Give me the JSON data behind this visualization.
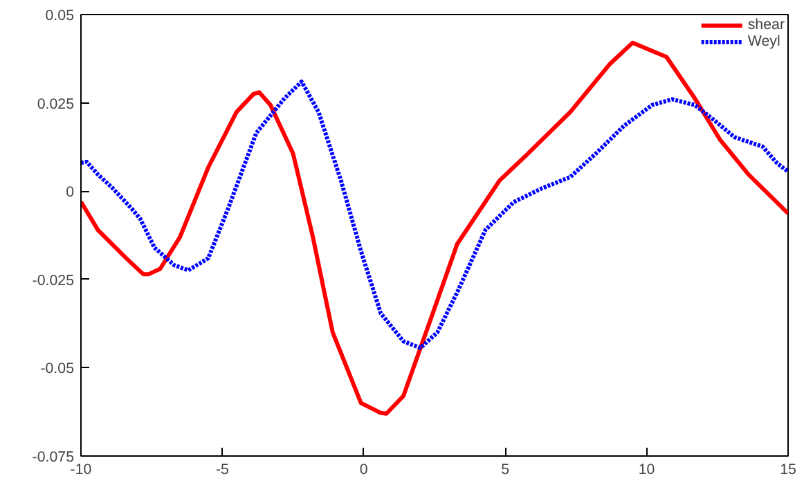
{
  "chart_data": {
    "type": "line",
    "xlim": [
      -10,
      15
    ],
    "ylim": [
      -0.075,
      0.05
    ],
    "xticks": [
      -10,
      -5,
      0,
      5,
      10,
      15
    ],
    "yticks": [
      -0.075,
      -0.05,
      -0.025,
      0,
      0.025,
      0.05
    ],
    "grid": false,
    "legend": "top right",
    "marker": "none",
    "series": [
      {
        "name": "shear",
        "color": "#ff0000",
        "line_style": "solid",
        "x": [
          -10,
          -9.4,
          -8.4,
          -7.8,
          -7.6,
          -7.2,
          -6.5,
          -5.5,
          -4.5,
          -3.9,
          -3.7,
          -3.3,
          -2.5,
          -1.8,
          -1.1,
          -0.1,
          0.6,
          0.8,
          1.4,
          2.35,
          3.3,
          4.8,
          5.8,
          7.3,
          8.7,
          9.5,
          10.7,
          11.7,
          12.6,
          13.6,
          15
        ],
        "values": [
          -0.003,
          -0.011,
          -0.019,
          -0.0235,
          -0.0235,
          -0.022,
          -0.013,
          0.0067,
          0.0224,
          0.0275,
          0.028,
          0.0244,
          0.0106,
          -0.013,
          -0.04,
          -0.06,
          -0.0628,
          -0.063,
          -0.058,
          -0.0366,
          -0.015,
          0.003,
          0.0106,
          0.0224,
          0.036,
          0.042,
          0.038,
          0.0263,
          0.0145,
          0.0047,
          -0.0063
        ]
      },
      {
        "name": "Weyl",
        "color": "#0000ff",
        "line_style": "dotted",
        "x": [
          -10,
          -9.8,
          -9.4,
          -8.9,
          -8.2,
          -7.9,
          -7.4,
          -6.7,
          -6.2,
          -5.5,
          -4.8,
          -3.8,
          -2.8,
          -2.2,
          -1.6,
          -0.8,
          -0.1,
          0.6,
          1.4,
          2.0,
          2.6,
          3.3,
          4.3,
          5.3,
          6.3,
          7.3,
          8.2,
          9.2,
          10.2,
          10.9,
          11.7,
          12.4,
          13.1,
          14.1,
          14.6,
          15
        ],
        "values": [
          0.008,
          0.0083,
          0.0047,
          0.001,
          -0.005,
          -0.0079,
          -0.016,
          -0.021,
          -0.0224,
          -0.019,
          -0.005,
          0.0165,
          0.0263,
          0.031,
          0.0224,
          0.0028,
          -0.017,
          -0.0346,
          -0.0425,
          -0.0444,
          -0.04,
          -0.0287,
          -0.011,
          -0.0031,
          0.0008,
          0.004,
          0.0106,
          0.0185,
          0.0244,
          0.026,
          0.0244,
          0.02,
          0.0153,
          0.0126,
          0.008,
          0.0055
        ]
      }
    ]
  }
}
